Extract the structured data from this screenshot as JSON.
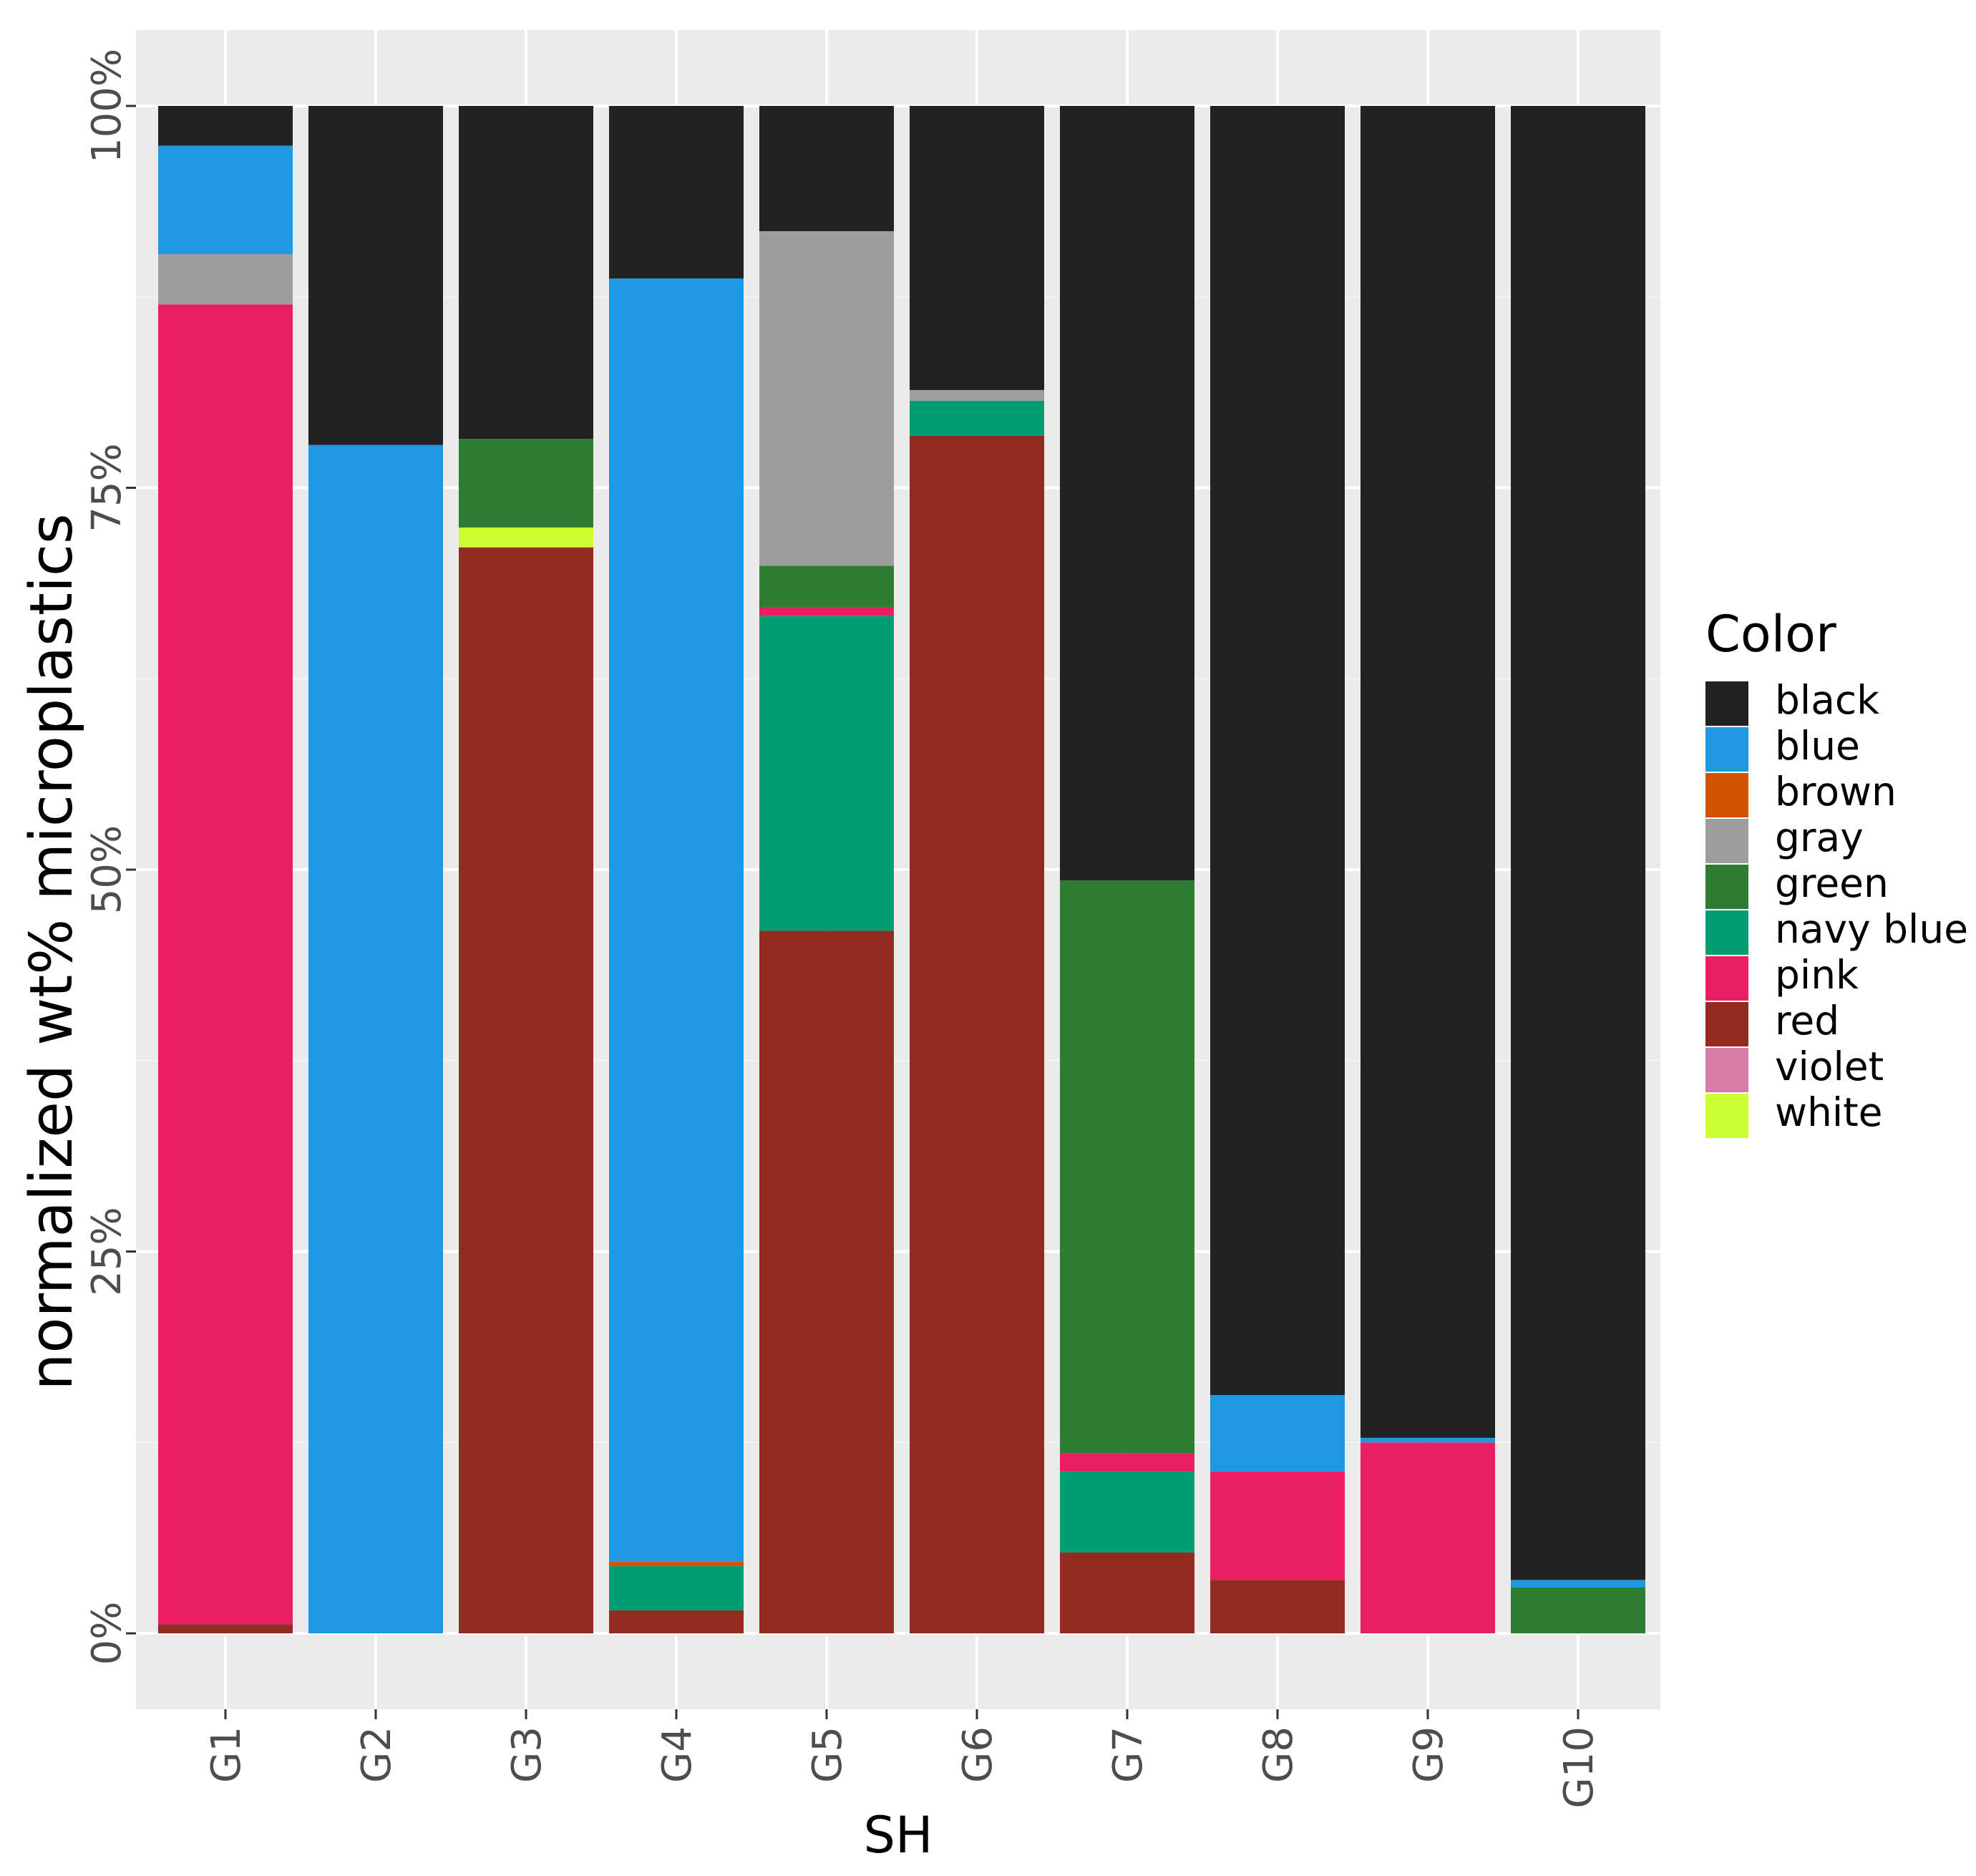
{
  "chart_data": {
    "type": "bar",
    "stacked": true,
    "title": "",
    "xlabel": "SH",
    "ylabel": "normalized wt% microplastics",
    "ylim": [
      0,
      100
    ],
    "y_tick_values": [
      0,
      25,
      50,
      75,
      100
    ],
    "y_tick_labels": [
      "0%",
      "25%",
      "50%",
      "75%",
      "100%"
    ],
    "grid": true,
    "legend_title": "Color",
    "legend_position": "right",
    "categories": [
      "G1",
      "G2",
      "G3",
      "G4",
      "G5",
      "G6",
      "G7",
      "G8",
      "G9",
      "G10"
    ],
    "series": [
      {
        "name": "red",
        "color": "#922B21",
        "values": [
          0.6,
          0,
          71.1,
          1.5,
          46.0,
          78.4,
          5.3,
          3.5,
          0,
          0
        ]
      },
      {
        "name": "white",
        "color": "#CCFF33",
        "values": [
          0,
          0,
          1.3,
          0,
          0,
          0,
          0,
          0,
          0,
          0
        ]
      },
      {
        "name": "navy blue",
        "color": "#009E73",
        "values": [
          0,
          0,
          0,
          2.9,
          20.6,
          2.3,
          5.3,
          0,
          0,
          0
        ]
      },
      {
        "name": "pink",
        "color": "#E91E63",
        "values": [
          86.4,
          0,
          0,
          0,
          0.6,
          0,
          1.2,
          7.1,
          12.5,
          0
        ]
      },
      {
        "name": "violet",
        "color": "#D77BA7",
        "values": [
          0,
          0,
          0,
          0,
          0,
          0,
          0,
          0,
          0,
          0
        ]
      },
      {
        "name": "green",
        "color": "#2E7D32",
        "values": [
          0,
          0,
          5.8,
          0,
          2.7,
          0,
          37.5,
          0,
          0,
          3.0
        ]
      },
      {
        "name": "brown",
        "color": "#D35400",
        "values": [
          0,
          0,
          0,
          0.3,
          0,
          0,
          0,
          0,
          0,
          0
        ]
      },
      {
        "name": "gray",
        "color": "#9E9E9E",
        "values": [
          3.3,
          0,
          0,
          0,
          21.9,
          0.7,
          0,
          0,
          0,
          0
        ]
      },
      {
        "name": "blue",
        "color": "#1E98E0",
        "values": [
          7.1,
          77.8,
          0,
          84.0,
          0,
          0,
          0,
          5.0,
          0.3,
          0.5
        ]
      },
      {
        "name": "black",
        "color": "#222222",
        "values": [
          2.6,
          22.2,
          21.8,
          11.3,
          8.2,
          18.6,
          50.7,
          84.4,
          87.2,
          96.5
        ]
      }
    ],
    "legend_order": [
      "black",
      "blue",
      "brown",
      "gray",
      "green",
      "navy blue",
      "pink",
      "red",
      "violet",
      "white"
    ]
  }
}
